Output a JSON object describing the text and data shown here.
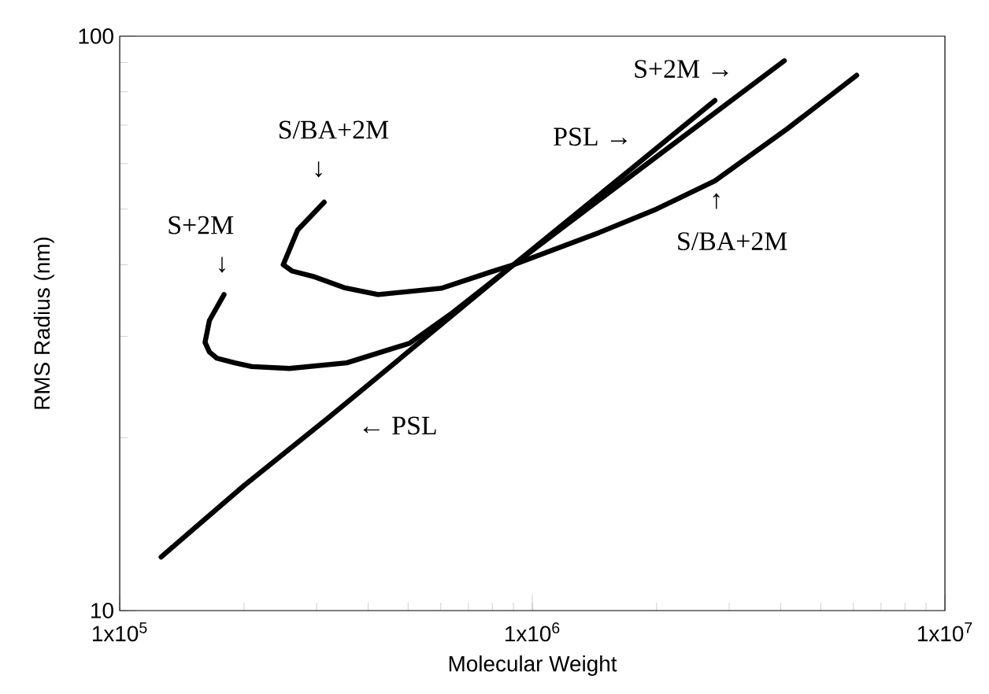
{
  "chart_data": {
    "type": "line",
    "xlabel": "Molecular Weight",
    "ylabel": "RMS Radius (nm)",
    "log": "xy",
    "xlim": [
      100000,
      10000000
    ],
    "ylim": [
      10,
      100
    ],
    "xticks": [
      {
        "value": 100000,
        "label": "1x10$^{5}$"
      },
      {
        "value": 1000000,
        "label": "1x10$^{6}$"
      },
      {
        "value": 10000000,
        "label": "1x10$^{7}$"
      }
    ],
    "yticks": [
      10,
      100
    ],
    "marker": "none",
    "line_style": "solid",
    "series": [
      {
        "color": "#000000",
        "x": [
          126000,
          200000,
          319000,
          900000,
          1800000,
          2770000
        ],
        "values": [
          12.4,
          16.5,
          21.6,
          40,
          60,
          77.3
        ]
      },
      {
        "color": "#000000",
        "x": [
          179000,
          165000,
          161000,
          165000,
          172000,
          190000,
          209000,
          258000,
          355000,
          504000,
          640000,
          900000,
          2000000,
          4080000
        ],
        "values": [
          35.5,
          32,
          29.3,
          28.2,
          27.5,
          27,
          26.6,
          26.4,
          27.0,
          29.2,
          33,
          40,
          61.7,
          90.6
        ]
      },
      {
        "color": "#000000",
        "x": [
          313000,
          270000,
          249000,
          262000,
          297000,
          350000,
          423000,
          601000,
          796000,
          900000,
          1450000,
          2000000,
          2770000,
          4150000,
          6110000
        ],
        "values": [
          51.4,
          46,
          40,
          39,
          38.1,
          36.5,
          35.5,
          36.4,
          38.9,
          40,
          45.5,
          50,
          56,
          69,
          85.5
        ]
      }
    ],
    "annotations": [
      "S+2M →",
      "PSL →",
      "↑",
      "S/BA+2M",
      "S/BA+2M",
      "↓",
      "S+2M",
      "↓",
      "← PSL"
    ]
  }
}
